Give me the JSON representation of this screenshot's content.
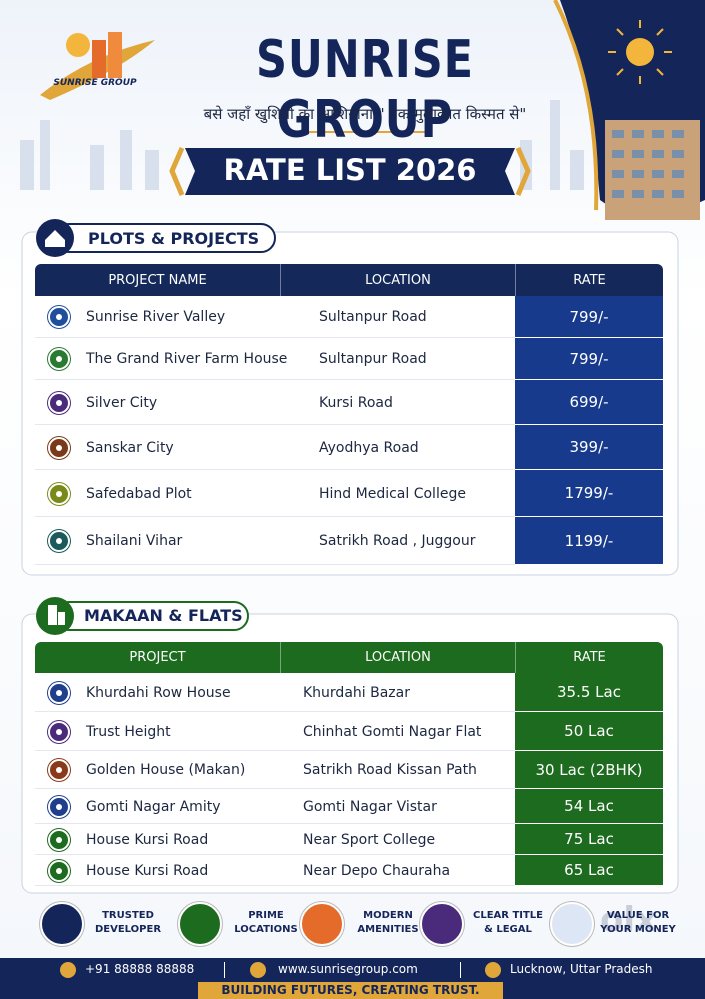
{
  "header": {
    "logo_text": "SUNRISE GROUP",
    "title": "SUNRISE GROUP",
    "tagline": "बसे जहाँ खुशियो का आशियाना \" एक मुलाकात किस्मत से\"",
    "banner": "RATE LIST 2026"
  },
  "plots": {
    "title": "PLOTS & PROJECTS",
    "headers": [
      "PROJECT NAME",
      "LOCATION",
      "RATE"
    ],
    "rows": [
      {
        "name": "Sunrise River Valley",
        "location": "Sultanpur Road",
        "rate": "799/-"
      },
      {
        "name": "The Grand River Farm House",
        "location": "Sultanpur Road",
        "rate": "799/-"
      },
      {
        "name": "Silver City",
        "location": "Kursi Road",
        "rate": "699/-"
      },
      {
        "name": "Sanskar City",
        "location": "Ayodhya Road",
        "rate": "399/-"
      },
      {
        "name": "Safedabad Plot",
        "location": "Hind Medical College",
        "rate": "1799/-"
      },
      {
        "name": "Shailani Vihar",
        "location": "Satrikh Road , Juggour",
        "rate": "1199/-"
      }
    ]
  },
  "flats": {
    "title": "MAKAAN & FLATS",
    "headers": [
      "PROJECT",
      "LOCATION",
      "RATE"
    ],
    "rows": [
      {
        "name": "Khurdahi Row House",
        "location": "Khurdahi Bazar",
        "rate": "35.5 Lac"
      },
      {
        "name": "Trust Height",
        "location": "Chinhat Gomti Nagar Flat",
        "rate": "50 Lac"
      },
      {
        "name": "Golden House (Makan)",
        "location": "Satrikh Road Kissan Path",
        "rate": "30 Lac (2BHK)"
      },
      {
        "name": "Gomti Nagar Amity",
        "location": "Gomti Nagar Vistar",
        "rate": "54 Lac"
      },
      {
        "name": "House Kursi Road",
        "location": "Near Sport College",
        "rate": "75 Lac"
      },
      {
        "name": "House Kursi Road",
        "location": "Near Depo Chauraha",
        "rate": "65 Lac"
      }
    ]
  },
  "features": [
    {
      "lines": [
        "TRUSTED",
        "DEVELOPER"
      ]
    },
    {
      "lines": [
        "PRIME",
        "LOCATIONS"
      ]
    },
    {
      "lines": [
        "MODERN",
        "AMENITIES"
      ]
    },
    {
      "lines": [
        "CLEAR TITLE",
        "& LEGAL"
      ]
    },
    {
      "lines": [
        "VALUE FOR",
        "YOUR MONEY"
      ]
    }
  ],
  "footer": {
    "phone": "+91 88888 88888",
    "website": "www.sunrisegroup.com",
    "location": "Lucknow, Uttar Pradesh",
    "slogan": "BUILDING FUTURES, CREATING TRUST."
  },
  "watermark": "olx"
}
